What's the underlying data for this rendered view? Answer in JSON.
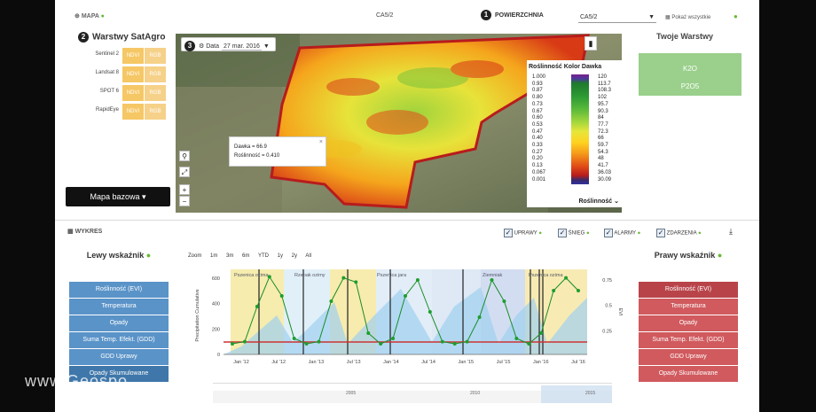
{
  "topbar": {
    "mapa": "MAPA",
    "center_title": "CA5/2",
    "powierzchnia": "POWIERZCHNIA",
    "select_value": "CA5/2",
    "pokaz": "Pokaż wszystkie",
    "step1": "1"
  },
  "warstwy": {
    "title": "Warstwy SatAgro",
    "step": "2",
    "items": [
      {
        "name": "Sentinel 2",
        "b1": "NDVI",
        "b2": "RGB"
      },
      {
        "name": "Landsat 8",
        "b1": "NDVI",
        "b2": "RGB"
      },
      {
        "name": "SPOT 6",
        "b1": "NDVI",
        "b2": "RGB"
      },
      {
        "name": "RapidEye",
        "b1": "NDVI",
        "b2": "RGB"
      }
    ],
    "basemap": "Mapa bazowa"
  },
  "map": {
    "step": "3",
    "date_label": "Data",
    "date_value": "27 mar. 2016",
    "tooltip_line1": "Dawka = 66.9",
    "tooltip_line2": "Roślinność = 0.410"
  },
  "legend": {
    "headers": [
      "Roślinność",
      "Kolor",
      "Dawka"
    ],
    "rosl": [
      "1.000",
      "0.93",
      "0.87",
      "0.80",
      "0.73",
      "0.67",
      "0.60",
      "0.53",
      "0.47",
      "0.40",
      "0.33",
      "0.27",
      "0.20",
      "0.13",
      "0.067",
      "0.001"
    ],
    "dawka": [
      "120",
      "113.7",
      "108.3",
      "102",
      "95.7",
      "90.3",
      "84",
      "77.7",
      "72.3",
      "66",
      "59.7",
      "54.3",
      "48",
      "41.7",
      "36.03",
      "30.09"
    ],
    "footer": "Roślinność"
  },
  "twoje": {
    "title": "Twoje Warstwy",
    "items": [
      "K2O",
      "P2O5"
    ]
  },
  "wykres": {
    "title": "WYKRES",
    "checks": [
      {
        "label": "UPRAWY"
      },
      {
        "label": "ŚNIEG"
      },
      {
        "label": "ALARMY"
      },
      {
        "label": "ZDARZENIA"
      }
    ]
  },
  "left_indicator": {
    "title": "Lewy wskaźnik",
    "items": [
      "Roślinność (EVI)",
      "Temperatura",
      "Opady",
      "Suma Temp. Efekt. (GDD)",
      "GDD Uprawy",
      "Opady Skumulowane"
    ]
  },
  "right_indicator": {
    "title": "Prawy wskaźnik",
    "items": [
      "Roślinność (EVI)",
      "Temperatura",
      "Opady",
      "Suma Temp. Efekt. (GDD)",
      "GDD Uprawy",
      "Opady Skumulowane"
    ]
  },
  "zoom": {
    "label": "Zoom",
    "options": [
      "1m",
      "3m",
      "6m",
      "YTD",
      "1y",
      "2y",
      "All"
    ]
  },
  "chart_data": {
    "type": "line",
    "ylabel_left": "Precipitation Cumulative",
    "ylabel_right": "EVI",
    "x_ticks": [
      "Jan '12",
      "Jul '12",
      "Jan '13",
      "Jul '13",
      "Jan '14",
      "Jul '14",
      "Jan '15",
      "Jul '15",
      "Jan '16",
      "Jul '16"
    ],
    "y_left_ticks": [
      "0",
      "200",
      "400",
      "600"
    ],
    "y_right_ticks": [
      "0.25",
      "0.5",
      "0.75"
    ],
    "crop_labels": [
      "Pszenica ozima",
      "Rzepak ozimy",
      "Pszenica jara",
      "Ziemniak",
      "Pszenica ozima"
    ],
    "series": [
      {
        "name": "EVI",
        "values": [
          0.1,
          0.12,
          0.45,
          0.73,
          0.55,
          0.15,
          0.1,
          0.12,
          0.5,
          0.72,
          0.68,
          0.2,
          0.1,
          0.15,
          0.55,
          0.7,
          0.4,
          0.12,
          0.1,
          0.12,
          0.35,
          0.7,
          0.5,
          0.15,
          0.1,
          0.2,
          0.6,
          0.72,
          0.6
        ]
      }
    ],
    "navigator_ticks": [
      "2005",
      "2010",
      "2015"
    ]
  },
  "colors": {
    "accent_green": "#6b3",
    "layer_orange": "#f6c765",
    "left_blue": "#5a93c8",
    "right_red": "#d05a5e",
    "twoje_green": "#9ad08b"
  },
  "watermark": "www.Geospo"
}
